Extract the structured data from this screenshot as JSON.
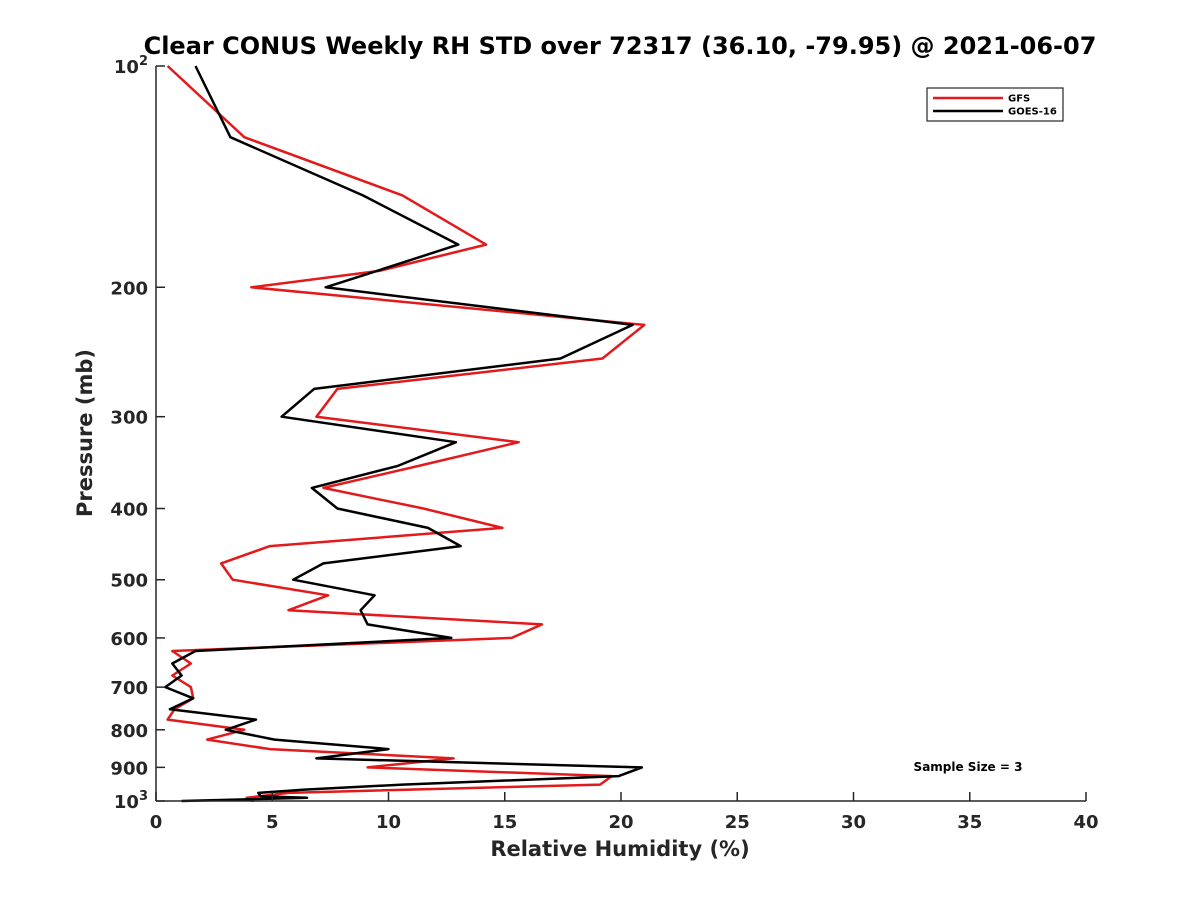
{
  "chart_data": {
    "type": "line",
    "title": "Clear CONUS Weekly RH STD over 72317 (36.10, -79.95) @ 2021-06-07",
    "xlabel": "Relative Humidity (%)",
    "ylabel": "Pressure (mb)",
    "xlim": [
      0,
      40
    ],
    "ylim": [
      100,
      1000
    ],
    "y_scale": "log",
    "y_reversed": true,
    "grid": false,
    "legend_position": "top-right",
    "x_ticks": [
      "0",
      "5",
      "10",
      "15",
      "20",
      "25",
      "30",
      "35",
      "40"
    ],
    "y_ticks": [
      {
        "value": 100,
        "base": "10",
        "exp": "2"
      },
      {
        "value": 200,
        "label": "200"
      },
      {
        "value": 300,
        "label": "300"
      },
      {
        "value": 400,
        "label": "400"
      },
      {
        "value": 500,
        "label": "500"
      },
      {
        "value": 600,
        "label": "600"
      },
      {
        "value": 700,
        "label": "700"
      },
      {
        "value": 800,
        "label": "800"
      },
      {
        "value": 900,
        "label": "900"
      },
      {
        "value": 1000,
        "base": "10",
        "exp": "3"
      }
    ],
    "annotation": "Sample Size = 3",
    "series": [
      {
        "name": "GFS",
        "color": "#e31a1c",
        "points": [
          [
            0.5,
            100
          ],
          [
            3.8,
            125
          ],
          [
            10.6,
            150
          ],
          [
            14.2,
            175
          ],
          [
            9.6,
            190
          ],
          [
            4.1,
            200
          ],
          [
            21.0,
            225
          ],
          [
            19.2,
            250
          ],
          [
            7.8,
            275
          ],
          [
            6.9,
            300
          ],
          [
            15.6,
            325
          ],
          [
            11.3,
            350
          ],
          [
            7.2,
            375
          ],
          [
            11.5,
            400
          ],
          [
            14.9,
            425
          ],
          [
            4.9,
            450
          ],
          [
            2.8,
            475
          ],
          [
            3.3,
            500
          ],
          [
            7.4,
            525
          ],
          [
            5.7,
            550
          ],
          [
            16.6,
            575
          ],
          [
            15.3,
            600
          ],
          [
            0.7,
            625
          ],
          [
            1.5,
            650
          ],
          [
            0.7,
            675
          ],
          [
            1.5,
            700
          ],
          [
            1.6,
            725
          ],
          [
            0.8,
            750
          ],
          [
            0.5,
            775
          ],
          [
            3.8,
            800
          ],
          [
            2.2,
            825
          ],
          [
            4.9,
            850
          ],
          [
            12.8,
            875
          ],
          [
            9.1,
            900
          ],
          [
            19.6,
            925
          ],
          [
            19.1,
            950
          ],
          [
            5.7,
            975
          ],
          [
            3.9,
            990
          ],
          [
            3.9,
            995
          ],
          [
            4.2,
            1000
          ]
        ]
      },
      {
        "name": "GOES-16",
        "color": "#000000",
        "points": [
          [
            1.7,
            100
          ],
          [
            3.2,
            125
          ],
          [
            8.9,
            150
          ],
          [
            13.0,
            175
          ],
          [
            9.5,
            190
          ],
          [
            7.3,
            200
          ],
          [
            20.5,
            225
          ],
          [
            17.4,
            250
          ],
          [
            6.8,
            275
          ],
          [
            5.4,
            300
          ],
          [
            12.9,
            325
          ],
          [
            10.4,
            350
          ],
          [
            6.7,
            375
          ],
          [
            7.8,
            400
          ],
          [
            11.7,
            425
          ],
          [
            13.1,
            450
          ],
          [
            7.2,
            475
          ],
          [
            5.9,
            500
          ],
          [
            9.4,
            525
          ],
          [
            8.8,
            550
          ],
          [
            9.1,
            575
          ],
          [
            12.7,
            600
          ],
          [
            1.7,
            625
          ],
          [
            0.7,
            650
          ],
          [
            1.1,
            675
          ],
          [
            0.4,
            700
          ],
          [
            1.6,
            725
          ],
          [
            0.6,
            750
          ],
          [
            4.3,
            775
          ],
          [
            3.0,
            800
          ],
          [
            5.1,
            825
          ],
          [
            10.0,
            850
          ],
          [
            6.9,
            875
          ],
          [
            20.9,
            900
          ],
          [
            19.9,
            925
          ],
          [
            10.6,
            950
          ],
          [
            6.4,
            965
          ],
          [
            4.4,
            975
          ],
          [
            4.5,
            985
          ],
          [
            6.5,
            990
          ],
          [
            1.1,
            1000
          ]
        ]
      }
    ]
  }
}
